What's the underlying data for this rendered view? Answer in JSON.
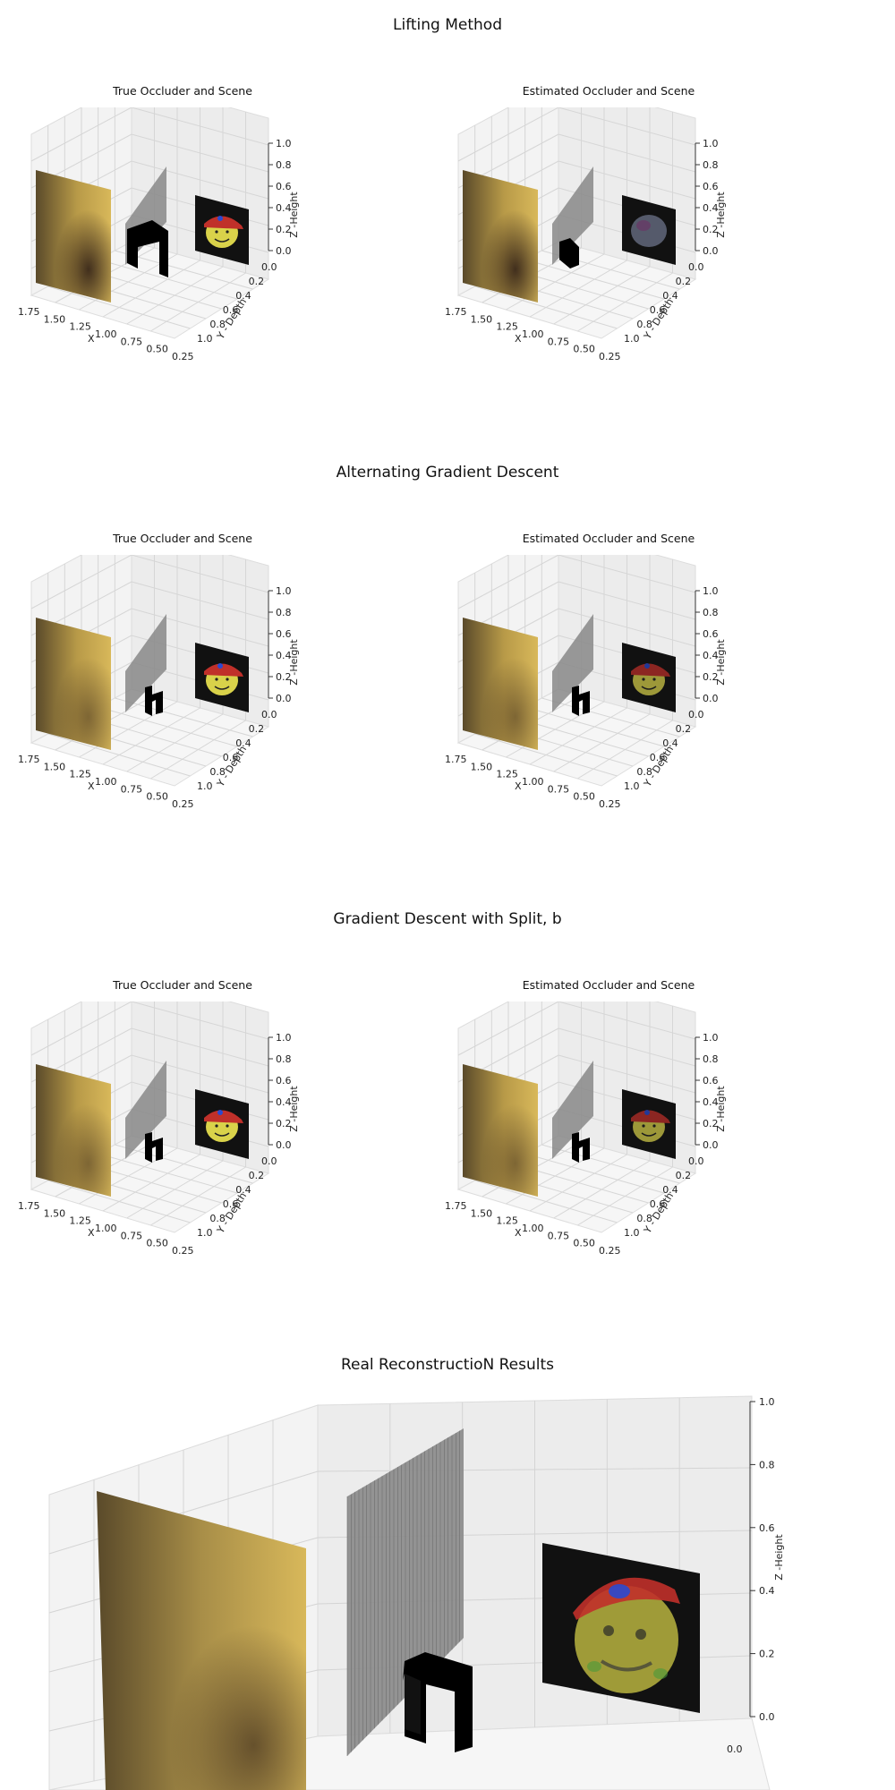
{
  "sections": [
    {
      "title": "Lifting Method",
      "left_title": "True Occluder and Scene",
      "right_title": "Estimated Occluder and Scene"
    },
    {
      "title": "Alternating Gradient Descent",
      "left_title": "True Occluder and Scene",
      "right_title": "Estimated Occluder and Scene"
    },
    {
      "title": "Gradient Descent with Split, b",
      "left_title": "True Occluder and Scene",
      "right_title": "Estimated Occluder and Scene"
    },
    {
      "title": "Real ReconstructioN Results"
    }
  ],
  "axes": {
    "x_label": "X",
    "y_label": "Y - Depth",
    "z_label": "Z -Height",
    "x_ticks": [
      "1.75",
      "1.50",
      "1.25",
      "1.00",
      "0.75",
      "0.50",
      "0.25"
    ],
    "y_ticks": [
      "0.0",
      "0.2",
      "0.4",
      "0.6",
      "0.8",
      "1.0"
    ],
    "z_ticks": [
      "0.0",
      "0.2",
      "0.4",
      "0.6",
      "0.8",
      "1.0"
    ],
    "big_y_ticks": [
      "0.0"
    ]
  },
  "colors": {
    "wall_light": "#d8b85a",
    "wall_dark": "#5a4a2a",
    "occluder_plane": "#888888",
    "occluder_block": "#000000",
    "scene_bg": "#111111",
    "scene_face": "#d9d24a",
    "scene_hat": "#c0302a",
    "scene_hat_dot": "#2a4ad0"
  }
}
